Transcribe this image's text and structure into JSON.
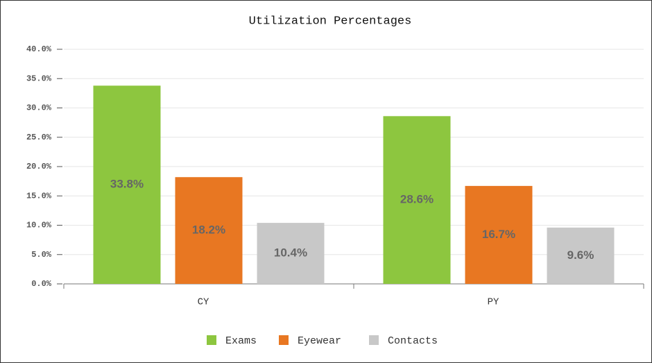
{
  "chart_data": {
    "type": "bar",
    "title": "Utilization Percentages",
    "categories": [
      "CY",
      "PY"
    ],
    "series": [
      {
        "name": "Exams",
        "color": "#8dc63f",
        "values": [
          33.8,
          28.6
        ],
        "value_labels": [
          "33.8%",
          "28.6%"
        ]
      },
      {
        "name": "Eyewear",
        "color": "#e87722",
        "values": [
          18.2,
          16.7
        ],
        "value_labels": [
          "18.2%",
          "16.7%"
        ]
      },
      {
        "name": "Contacts",
        "color": "#c8c8c8",
        "values": [
          10.4,
          9.6
        ],
        "value_labels": [
          "10.4%",
          "9.6%"
        ]
      }
    ],
    "ylim": [
      0,
      40
    ],
    "yticks": [
      {
        "value": 0,
        "label": "0.0%"
      },
      {
        "value": 5,
        "label": "5.0%"
      },
      {
        "value": 10,
        "label": "10.0%"
      },
      {
        "value": 15,
        "label": "15.0%"
      },
      {
        "value": 20,
        "label": "20.0%"
      },
      {
        "value": 25,
        "label": "25.0%"
      },
      {
        "value": 30,
        "label": "30.0%"
      },
      {
        "value": 35,
        "label": "35.0%"
      },
      {
        "value": 40,
        "label": "40.0%"
      }
    ],
    "grid": true,
    "legend": "bottom"
  }
}
